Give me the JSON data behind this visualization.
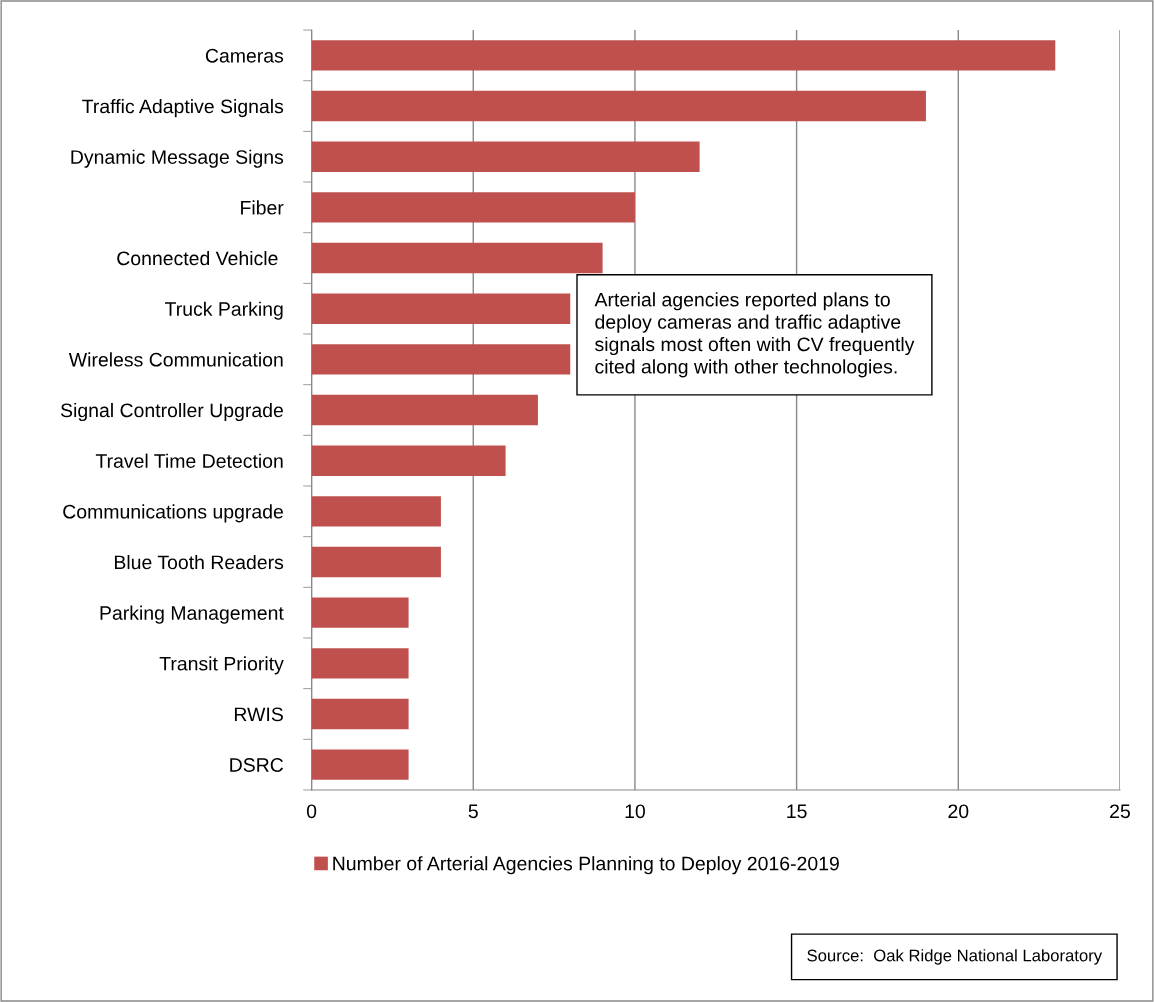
{
  "chart_data": {
    "type": "bar",
    "orientation": "horizontal",
    "categories": [
      "Cameras",
      "Traffic Adaptive Signals",
      "Dynamic Message Signs",
      "Fiber",
      "Connected Vehicle ",
      "Truck Parking",
      "Wireless Communication",
      "Signal Controller Upgrade",
      "Travel Time Detection",
      "Communications upgrade",
      "Blue Tooth Readers",
      "Parking Management",
      "Transit Priority",
      "RWIS",
      "DSRC"
    ],
    "series": [
      {
        "name": "Number of Arterial Agencies Planning to Deploy 2016-2019",
        "color": "#c0504d",
        "values": [
          23,
          19,
          12,
          10,
          9,
          8,
          8,
          7,
          6,
          4,
          4,
          3,
          3,
          3,
          3
        ]
      }
    ],
    "xlim": [
      0,
      25
    ],
    "xticks": [
      0,
      5,
      10,
      15,
      20,
      25
    ],
    "grid": "x",
    "legend": "bottom",
    "annotations": [
      "Arterial agencies reported plans to\ndeploy cameras and traffic adaptive\nsignals most often with CV frequently\ncited along with other technologies.",
      "Source:  Oak Ridge National Laboratory"
    ]
  }
}
